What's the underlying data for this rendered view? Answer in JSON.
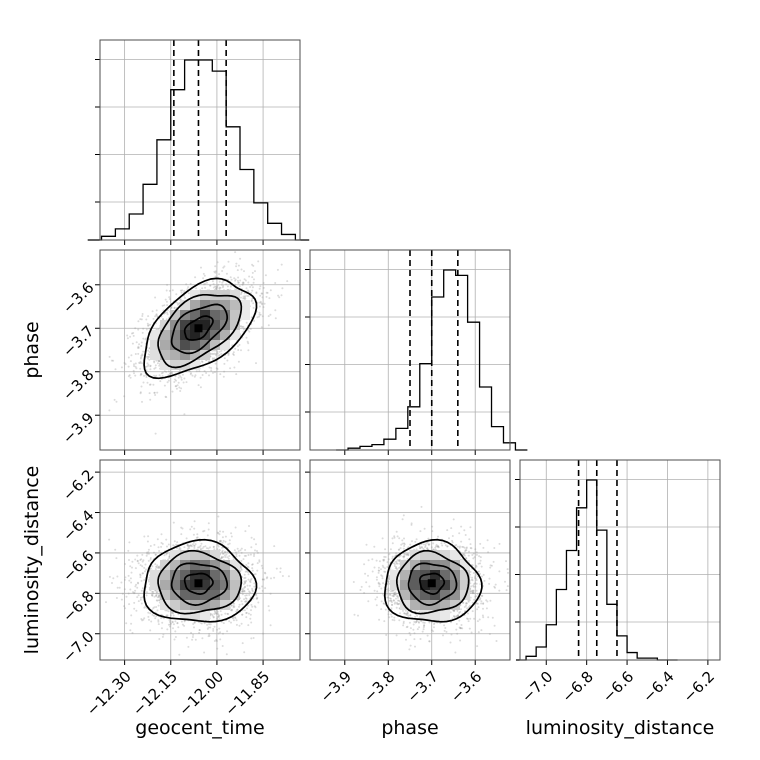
{
  "chart_data": {
    "type": "corner",
    "parameters": [
      "geocent_time",
      "phase",
      "luminosity_distance"
    ],
    "ranges": {
      "geocent_time": [
        -12.38,
        -11.73
      ],
      "phase": [
        -3.98,
        -3.52
      ],
      "luminosity_distance": [
        -7.13,
        -6.14
      ]
    },
    "ticks": {
      "geocent_time": [
        -12.3,
        -12.15,
        -12.0,
        -11.85
      ],
      "phase": [
        -3.9,
        -3.8,
        -3.7,
        -3.6
      ],
      "luminosity_distance": [
        -7.0,
        -6.8,
        -6.6,
        -6.4,
        -6.2
      ]
    },
    "tick_labels": {
      "geocent_time": [
        "−12.30",
        "−12.15",
        "−12.00",
        "−11.85"
      ],
      "phase": [
        "−3.9",
        "−3.8",
        "−3.7",
        "−3.6"
      ],
      "luminosity_distance": [
        "−7.0",
        "−6.8",
        "−6.6",
        "−6.4",
        "−6.2"
      ]
    },
    "quantiles": {
      "geocent_time": [
        -12.14,
        -12.06,
        -11.97
      ],
      "phase": [
        -3.75,
        -3.7,
        -3.64
      ],
      "luminosity_distance": [
        -6.84,
        -6.75,
        -6.65
      ]
    },
    "means": {
      "geocent_time": -12.06,
      "phase": -3.7,
      "luminosity_distance": -6.75
    },
    "sigmas": {
      "geocent_time": 0.09,
      "phase": 0.055,
      "luminosity_distance": 0.1
    },
    "correlations": {
      "phase_vs_geocent_time": 0.5,
      "luminosity_distance_vs_geocent_time": 0.0,
      "luminosity_distance_vs_phase": 0.0
    },
    "histograms": {
      "geocent_time": [
        0,
        2,
        6,
        14,
        30,
        54,
        81,
        97,
        97,
        91,
        61,
        38,
        20,
        9,
        3,
        0
      ],
      "phase": [
        0,
        1,
        2,
        3,
        6,
        12,
        24,
        48,
        85,
        100,
        97,
        71,
        35,
        13,
        4,
        0
      ],
      "luminosity_distance": [
        0,
        2,
        7,
        19,
        38,
        59,
        82,
        97,
        70,
        30,
        13,
        4,
        1,
        1,
        0,
        0
      ]
    },
    "grid": true
  }
}
